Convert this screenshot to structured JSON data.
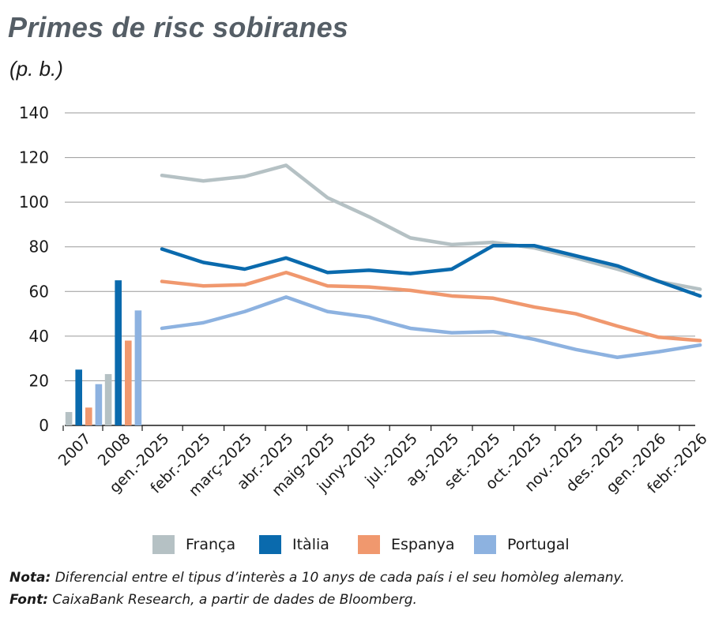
{
  "title": "Primes de risc sobiranes",
  "subtitle": "(p. b.)",
  "chart_data": {
    "type": "bar+line",
    "y_ticks": [
      "0",
      "20",
      "40",
      "60",
      "80",
      "100",
      "120",
      "140"
    ],
    "ylim": [
      0,
      140
    ],
    "grid": true,
    "bar_categories": [
      "2007",
      "2008"
    ],
    "line_categories": [
      "gen.-2025",
      "febr.-2025",
      "març-2025",
      "abr.-2025",
      "maig-2025",
      "juny-2025",
      "jul.-2025",
      "ag.-2025",
      "set.-2025",
      "oct.-2025",
      "nov.-2025",
      "des.-2025",
      "gen.-2026",
      "febr.-2026"
    ],
    "series": [
      {
        "name": "França",
        "color": "#b5c1c4",
        "bar_values": [
          6,
          23
        ],
        "line_values": [
          112,
          109.5,
          111.5,
          116.5,
          102,
          93.5,
          84,
          81,
          82,
          79.5,
          75,
          70,
          64.5,
          61
        ]
      },
      {
        "name": "Itàlia",
        "color": "#0a6aad",
        "bar_values": [
          25,
          65
        ],
        "line_values": [
          79,
          73,
          70,
          75,
          68.5,
          69.5,
          68,
          70,
          80.5,
          80.5,
          76,
          71.5,
          64.5,
          58
        ]
      },
      {
        "name": "Espanya",
        "color": "#f0986e",
        "bar_values": [
          8,
          38
        ],
        "line_values": [
          64.5,
          62.5,
          63,
          68.5,
          62.5,
          62,
          60.5,
          58,
          57,
          53,
          50,
          44.5,
          39.5,
          38
        ]
      },
      {
        "name": "Portugal",
        "color": "#8db2e0",
        "bar_values": [
          18.5,
          51.5
        ],
        "line_values": [
          43.5,
          46,
          51,
          57.5,
          51,
          48.5,
          43.5,
          41.5,
          42,
          38.5,
          34,
          30.5,
          33,
          36
        ]
      }
    ]
  },
  "legend": [
    "França",
    "Itàlia",
    "Espanya",
    "Portugal"
  ],
  "notes": {
    "nota_label": "Nota:",
    "nota_text": " Diferencial entre el tipus d’interès a 10 anys de cada país i el seu homòleg alemany.",
    "font_label": "Font:",
    "font_text": " CaixaBank Research, a partir de dades de Bloomberg."
  }
}
